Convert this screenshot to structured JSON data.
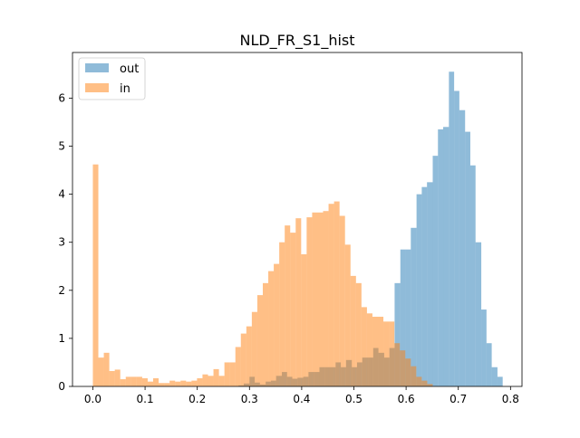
{
  "chart_data": {
    "type": "histogram",
    "title": "NLD_FR_S1_hist",
    "xlabel": "",
    "ylabel": "",
    "xlim": [
      -0.039,
      0.822
    ],
    "ylim": [
      0,
      6.95
    ],
    "xticks": [
      "0.0",
      "0.1",
      "0.2",
      "0.3",
      "0.4",
      "0.5",
      "0.6",
      "0.7",
      "0.8"
    ],
    "yticks": [
      "0",
      "1",
      "2",
      "3",
      "4",
      "5",
      "6"
    ],
    "grid": false,
    "legend_position": "top-left",
    "series": [
      {
        "name": "out",
        "color": "#1f77b4",
        "opacity": 0.5,
        "bins": [
          [
            0.279,
            0.289,
            0.02
          ],
          [
            0.289,
            0.3,
            0.06
          ],
          [
            0.3,
            0.31,
            0.2
          ],
          [
            0.31,
            0.32,
            0.08
          ],
          [
            0.32,
            0.331,
            0.04
          ],
          [
            0.331,
            0.341,
            0.1
          ],
          [
            0.341,
            0.351,
            0.12
          ],
          [
            0.351,
            0.362,
            0.22
          ],
          [
            0.362,
            0.372,
            0.3
          ],
          [
            0.372,
            0.382,
            0.2
          ],
          [
            0.382,
            0.392,
            0.16
          ],
          [
            0.392,
            0.403,
            0.18
          ],
          [
            0.403,
            0.413,
            0.2
          ],
          [
            0.413,
            0.423,
            0.3
          ],
          [
            0.423,
            0.434,
            0.3
          ],
          [
            0.434,
            0.444,
            0.4
          ],
          [
            0.444,
            0.454,
            0.4
          ],
          [
            0.454,
            0.465,
            0.4
          ],
          [
            0.465,
            0.475,
            0.5
          ],
          [
            0.475,
            0.485,
            0.4
          ],
          [
            0.485,
            0.496,
            0.55
          ],
          [
            0.496,
            0.506,
            0.4
          ],
          [
            0.506,
            0.516,
            0.5
          ],
          [
            0.516,
            0.527,
            0.6
          ],
          [
            0.527,
            0.537,
            0.6
          ],
          [
            0.537,
            0.547,
            0.8
          ],
          [
            0.547,
            0.558,
            0.7
          ],
          [
            0.558,
            0.568,
            0.6
          ],
          [
            0.568,
            0.578,
            0.8
          ],
          [
            0.578,
            0.589,
            2.15
          ],
          [
            0.589,
            0.599,
            2.85
          ],
          [
            0.599,
            0.609,
            2.85
          ],
          [
            0.609,
            0.62,
            3.3
          ],
          [
            0.62,
            0.63,
            4.0
          ],
          [
            0.63,
            0.64,
            4.15
          ],
          [
            0.64,
            0.651,
            4.25
          ],
          [
            0.651,
            0.661,
            4.8
          ],
          [
            0.661,
            0.671,
            5.35
          ],
          [
            0.671,
            0.682,
            5.4
          ],
          [
            0.682,
            0.692,
            6.55
          ],
          [
            0.692,
            0.702,
            6.15
          ],
          [
            0.702,
            0.713,
            5.75
          ],
          [
            0.713,
            0.723,
            5.3
          ],
          [
            0.723,
            0.733,
            4.6
          ],
          [
            0.733,
            0.744,
            3.0
          ],
          [
            0.744,
            0.754,
            1.6
          ],
          [
            0.754,
            0.764,
            0.9
          ],
          [
            0.764,
            0.775,
            0.4
          ],
          [
            0.775,
            0.785,
            0.2
          ]
        ]
      },
      {
        "name": "in",
        "color": "#ff7f0e",
        "opacity": 0.5,
        "bins": [
          [
            0.0,
            0.0105,
            4.62
          ],
          [
            0.0105,
            0.021,
            0.6
          ],
          [
            0.021,
            0.0315,
            0.7
          ],
          [
            0.0315,
            0.042,
            0.32
          ],
          [
            0.042,
            0.0525,
            0.35
          ],
          [
            0.0525,
            0.063,
            0.15
          ],
          [
            0.063,
            0.0735,
            0.2
          ],
          [
            0.0735,
            0.084,
            0.2
          ],
          [
            0.084,
            0.0945,
            0.2
          ],
          [
            0.0945,
            0.105,
            0.17
          ],
          [
            0.105,
            0.1155,
            0.1
          ],
          [
            0.1155,
            0.126,
            0.17
          ],
          [
            0.126,
            0.1365,
            0.07
          ],
          [
            0.1365,
            0.147,
            0.07
          ],
          [
            0.147,
            0.1575,
            0.12
          ],
          [
            0.1575,
            0.168,
            0.1
          ],
          [
            0.168,
            0.1785,
            0.12
          ],
          [
            0.1785,
            0.189,
            0.1
          ],
          [
            0.189,
            0.1995,
            0.12
          ],
          [
            0.1995,
            0.21,
            0.17
          ],
          [
            0.21,
            0.2205,
            0.25
          ],
          [
            0.2205,
            0.231,
            0.22
          ],
          [
            0.231,
            0.2415,
            0.36
          ],
          [
            0.2415,
            0.252,
            0.22
          ],
          [
            0.252,
            0.2625,
            0.5
          ],
          [
            0.2625,
            0.273,
            0.5
          ],
          [
            0.273,
            0.2835,
            0.82
          ],
          [
            0.2835,
            0.294,
            1.1
          ],
          [
            0.294,
            0.3045,
            1.25
          ],
          [
            0.3045,
            0.315,
            1.55
          ],
          [
            0.315,
            0.3255,
            1.9
          ],
          [
            0.3255,
            0.336,
            2.15
          ],
          [
            0.336,
            0.3465,
            2.4
          ],
          [
            0.3465,
            0.357,
            2.55
          ],
          [
            0.357,
            0.3675,
            3.0
          ],
          [
            0.3675,
            0.378,
            3.35
          ],
          [
            0.378,
            0.3885,
            3.2
          ],
          [
            0.3885,
            0.399,
            3.5
          ],
          [
            0.399,
            0.4095,
            2.75
          ],
          [
            0.4095,
            0.42,
            3.52
          ],
          [
            0.42,
            0.4305,
            3.62
          ],
          [
            0.4305,
            0.441,
            3.62
          ],
          [
            0.441,
            0.4515,
            3.65
          ],
          [
            0.4515,
            0.462,
            3.8
          ],
          [
            0.462,
            0.4725,
            3.85
          ],
          [
            0.4725,
            0.483,
            3.55
          ],
          [
            0.483,
            0.4935,
            2.95
          ],
          [
            0.4935,
            0.504,
            2.3
          ],
          [
            0.504,
            0.5145,
            2.15
          ],
          [
            0.5145,
            0.525,
            1.65
          ],
          [
            0.525,
            0.5355,
            1.52
          ],
          [
            0.5355,
            0.546,
            1.45
          ],
          [
            0.546,
            0.5565,
            1.45
          ],
          [
            0.5565,
            0.567,
            1.35
          ],
          [
            0.567,
            0.5775,
            1.35
          ],
          [
            0.5775,
            0.588,
            0.9
          ],
          [
            0.588,
            0.5985,
            0.75
          ],
          [
            0.5985,
            0.609,
            0.58
          ],
          [
            0.609,
            0.6195,
            0.42
          ],
          [
            0.6195,
            0.63,
            0.2
          ],
          [
            0.63,
            0.6405,
            0.12
          ],
          [
            0.6405,
            0.651,
            0.05
          ]
        ]
      }
    ]
  }
}
